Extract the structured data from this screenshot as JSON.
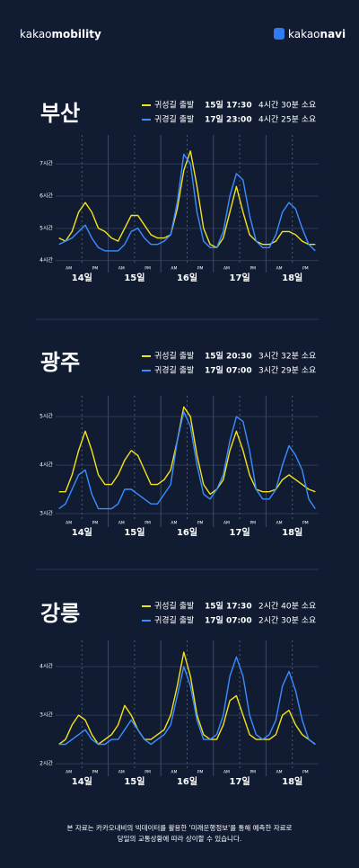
{
  "header": {
    "brand_prefix": "kakao",
    "brand_name": "mobility",
    "app_prefix": "kakao",
    "app_name": "navi"
  },
  "chart_data": [
    {
      "type": "line",
      "title": "부산",
      "days": [
        "14일",
        "15일",
        "16일",
        "17일",
        "18일"
      ],
      "periods": [
        "AM",
        "PM"
      ],
      "ylim": [
        3.85,
        7.9
      ],
      "yticks": [
        {
          "value": 4,
          "label": "4시간"
        },
        {
          "value": 5,
          "label": "5시간"
        },
        {
          "value": 6,
          "label": "6시간"
        },
        {
          "value": 7,
          "label": "7시간"
        }
      ],
      "series": [
        {
          "name": "귀성길 출발",
          "date": "15일 17:30",
          "duration": "4시간 30분 소요",
          "color": "#f2e21b",
          "values": [
            4.7,
            4.6,
            4.9,
            5.5,
            5.8,
            5.5,
            5.0,
            4.9,
            4.7,
            4.6,
            5.0,
            5.4,
            5.4,
            5.1,
            4.8,
            4.7,
            4.7,
            4.8,
            5.6,
            6.8,
            7.4,
            6.3,
            5.0,
            4.5,
            4.4,
            4.7,
            5.5,
            6.3,
            5.5,
            4.8,
            4.6,
            4.5,
            4.5,
            4.6,
            4.9,
            4.9,
            4.8,
            4.6,
            4.5,
            4.5
          ]
        },
        {
          "name": "귀경길 출발",
          "date": "17일 23:00",
          "duration": "4시간 25분 소요",
          "color": "#3a8dff",
          "values": [
            4.5,
            4.6,
            4.7,
            4.9,
            5.1,
            4.7,
            4.4,
            4.3,
            4.3,
            4.3,
            4.5,
            4.9,
            5.0,
            4.7,
            4.5,
            4.5,
            4.6,
            4.8,
            5.8,
            7.3,
            7.0,
            5.5,
            4.6,
            4.4,
            4.4,
            4.9,
            6.0,
            6.7,
            6.5,
            5.4,
            4.6,
            4.4,
            4.4,
            4.8,
            5.5,
            5.8,
            5.6,
            5.0,
            4.5,
            4.3
          ]
        }
      ]
    },
    {
      "type": "line",
      "title": "광주",
      "days": [
        "14일",
        "15일",
        "16일",
        "17일",
        "18일"
      ],
      "periods": [
        "AM",
        "PM"
      ],
      "ylim": [
        2.87,
        5.43
      ],
      "yticks": [
        {
          "value": 3,
          "label": "3시간"
        },
        {
          "value": 4,
          "label": "4시간"
        },
        {
          "value": 5,
          "label": "5시간"
        }
      ],
      "series": [
        {
          "name": "귀성길 출발",
          "date": "15일 20:30",
          "duration": "3시간 32분 소요",
          "color": "#f2e21b",
          "values": [
            3.45,
            3.45,
            3.8,
            4.3,
            4.7,
            4.3,
            3.8,
            3.6,
            3.6,
            3.8,
            4.1,
            4.3,
            4.2,
            3.9,
            3.6,
            3.6,
            3.7,
            3.9,
            4.5,
            5.2,
            5.0,
            4.2,
            3.6,
            3.4,
            3.5,
            3.7,
            4.3,
            4.7,
            4.3,
            3.8,
            3.5,
            3.45,
            3.45,
            3.5,
            3.7,
            3.8,
            3.7,
            3.6,
            3.5,
            3.45
          ]
        },
        {
          "name": "귀경길 출발",
          "date": "17일 07:00",
          "duration": "3시간 29분 소요",
          "color": "#3a8dff",
          "values": [
            3.1,
            3.2,
            3.5,
            3.8,
            3.9,
            3.4,
            3.1,
            3.1,
            3.1,
            3.2,
            3.5,
            3.5,
            3.4,
            3.3,
            3.2,
            3.2,
            3.4,
            3.6,
            4.5,
            5.1,
            4.8,
            4.0,
            3.4,
            3.3,
            3.5,
            3.8,
            4.5,
            5.0,
            4.9,
            4.3,
            3.5,
            3.3,
            3.3,
            3.5,
            4.0,
            4.4,
            4.2,
            3.9,
            3.3,
            3.1
          ]
        }
      ]
    },
    {
      "type": "line",
      "title": "강릉",
      "days": [
        "14일",
        "15일",
        "16일",
        "17일",
        "18일"
      ],
      "periods": [
        "AM",
        "PM"
      ],
      "ylim": [
        1.89,
        4.54
      ],
      "yticks": [
        {
          "value": 2,
          "label": "2시간"
        },
        {
          "value": 3,
          "label": "3시간"
        },
        {
          "value": 4,
          "label": "4시간"
        }
      ],
      "series": [
        {
          "name": "귀성길 출발",
          "date": "15일 17:30",
          "duration": "2시간 40분 소요",
          "color": "#f2e21b",
          "values": [
            2.4,
            2.5,
            2.8,
            3.0,
            2.9,
            2.6,
            2.4,
            2.5,
            2.6,
            2.8,
            3.2,
            3.0,
            2.7,
            2.5,
            2.5,
            2.6,
            2.7,
            3.0,
            3.6,
            4.3,
            3.8,
            3.0,
            2.6,
            2.5,
            2.5,
            2.8,
            3.3,
            3.4,
            3.0,
            2.6,
            2.5,
            2.5,
            2.5,
            2.6,
            3.0,
            3.1,
            2.8,
            2.6,
            2.5,
            2.4
          ]
        },
        {
          "name": "귀경길 출발",
          "date": "17일 07:00",
          "duration": "2시간 30분 소요",
          "color": "#3a8dff",
          "values": [
            2.4,
            2.4,
            2.5,
            2.6,
            2.7,
            2.5,
            2.4,
            2.4,
            2.5,
            2.5,
            2.7,
            2.9,
            2.7,
            2.5,
            2.4,
            2.5,
            2.6,
            2.8,
            3.4,
            4.0,
            3.6,
            2.9,
            2.5,
            2.5,
            2.6,
            3.0,
            3.8,
            4.2,
            3.8,
            3.0,
            2.6,
            2.5,
            2.6,
            2.9,
            3.6,
            3.9,
            3.5,
            2.9,
            2.5,
            2.4
          ]
        }
      ]
    }
  ],
  "footer": [
    "본 자료는 카카오내비의 빅데이터를 활용한 '미래운행정보'를 통해 예측한 자료로",
    "당일의 교통상황에 따라 상이할 수 있습니다."
  ]
}
